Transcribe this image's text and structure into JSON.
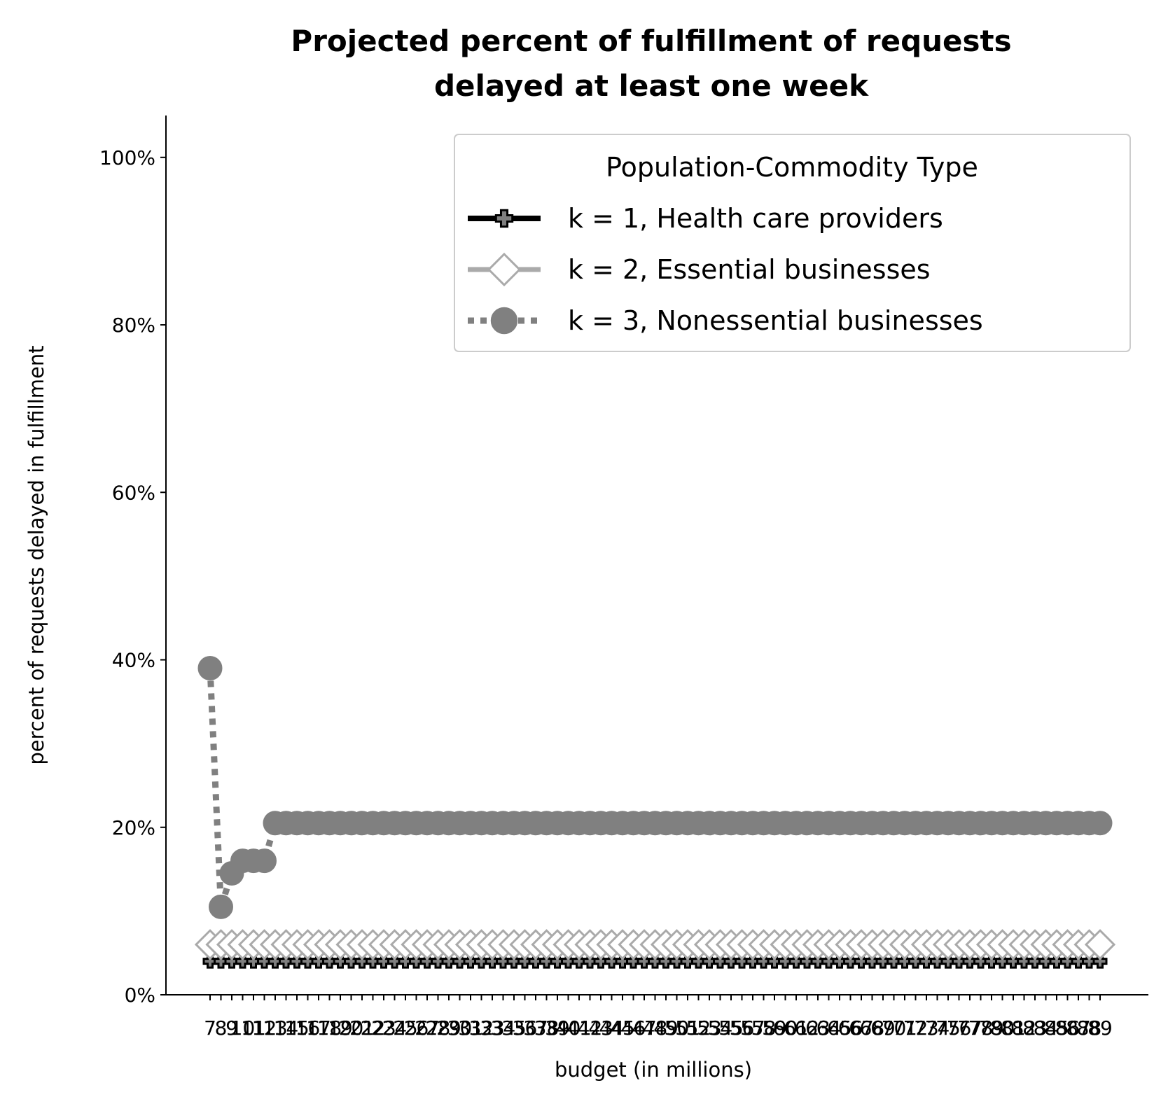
{
  "chart_data": {
    "type": "line",
    "title_lines": [
      "Projected percent of fulfillment of requests",
      "delayed at least one week"
    ],
    "xlabel": "budget (in millions)",
    "ylabel": "percent of requests delayed in fulfillment",
    "ylim": [
      0,
      105
    ],
    "yticks": [
      0,
      20,
      40,
      60,
      80,
      100
    ],
    "ytick_labels": [
      "0%",
      "20%",
      "40%",
      "60%",
      "80%",
      "100%"
    ],
    "x_start": 7,
    "x_end": 89,
    "x": [
      7,
      8,
      9,
      10,
      11,
      12,
      13,
      14,
      15,
      16,
      17,
      18,
      19,
      20,
      21,
      22,
      23,
      24,
      25,
      26,
      27,
      28,
      29,
      30,
      31,
      32,
      33,
      34,
      35,
      36,
      37,
      38,
      39,
      40,
      41,
      42,
      43,
      44,
      45,
      46,
      47,
      48,
      49,
      50,
      51,
      52,
      53,
      54,
      55,
      56,
      57,
      58,
      59,
      60,
      61,
      62,
      63,
      64,
      65,
      66,
      67,
      68,
      69,
      70,
      71,
      72,
      73,
      74,
      75,
      76,
      77,
      78,
      79,
      80,
      81,
      82,
      83,
      84,
      85,
      86,
      87,
      88,
      89
    ],
    "xtick_labels": [
      "7",
      "8",
      "9",
      "10",
      "11",
      "12",
      "13",
      "14",
      "15",
      "16",
      "17",
      "18",
      "19",
      "20",
      "21",
      "22",
      "23",
      "24",
      "25",
      "26",
      "27",
      "28",
      "29",
      "30",
      "31",
      "32",
      "33",
      "34",
      "35",
      "36",
      "37",
      "38",
      "39",
      "40",
      "41",
      "42",
      "43",
      "44",
      "45",
      "46",
      "47",
      "48",
      "49",
      "50",
      "51",
      "52",
      "53",
      "54",
      "55",
      "56",
      "57",
      "58",
      "59",
      "60",
      "61",
      "62",
      "63",
      "64",
      "65",
      "66",
      "67",
      "68",
      "69",
      "70",
      "71",
      "72",
      "73",
      "74",
      "75",
      "76",
      "77",
      "78",
      "79",
      "80",
      "81",
      "82",
      "83",
      "84",
      "85",
      "86",
      "87",
      "88",
      "89"
    ],
    "legend": {
      "title": "Population-Commodity Type",
      "placement": "top-right"
    },
    "series": [
      {
        "name": "k = 1, Health care providers",
        "color": "#000000",
        "marker": "plus",
        "linestyle": "solid",
        "constant": 4
      },
      {
        "name": "k = 2, Essential businesses",
        "color": "#aaaaaa",
        "marker": "diamond",
        "linestyle": "solid",
        "constant": 6
      },
      {
        "name": "k = 3, Nonessential businesses",
        "color": "#808080",
        "marker": "circle",
        "linestyle": "dotted",
        "head": [
          39,
          10.5,
          14.5,
          16,
          16,
          16
        ],
        "constant": 20.5
      }
    ]
  }
}
